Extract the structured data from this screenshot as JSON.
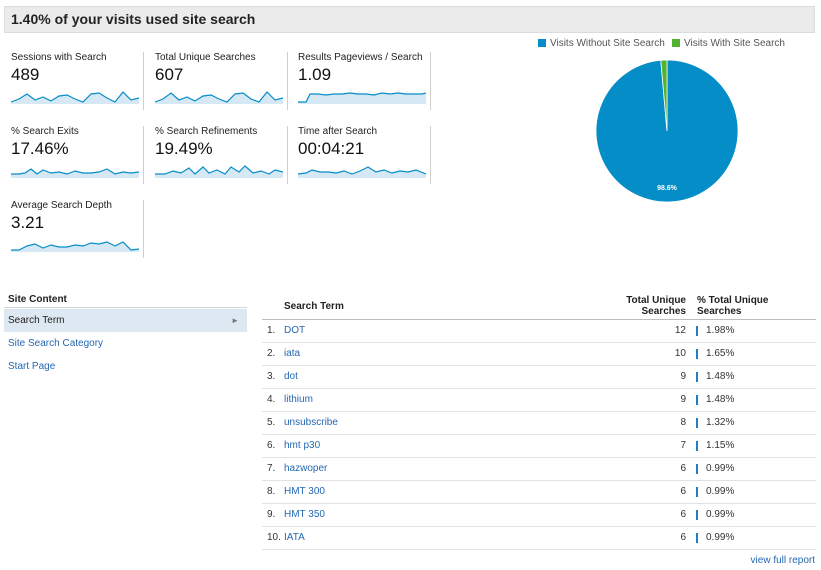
{
  "title": "1.40% of your visits used site search",
  "metrics": [
    {
      "label": "Sessions with Search",
      "value": "489"
    },
    {
      "label": "Total Unique Searches",
      "value": "607"
    },
    {
      "label": "Results Pageviews / Search",
      "value": "1.09"
    },
    {
      "label": "% Search Exits",
      "value": "17.46%"
    },
    {
      "label": "% Search Refinements",
      "value": "19.49%"
    },
    {
      "label": "Time after Search",
      "value": "00:04:21"
    },
    {
      "label": "Average Search Depth",
      "value": "3.21"
    }
  ],
  "legend": [
    {
      "label": "Visits Without Site Search",
      "color": "#058dc7"
    },
    {
      "label": "Visits With Site Search",
      "color": "#50b432"
    }
  ],
  "chart_data": {
    "type": "pie",
    "slices": [
      {
        "label": "Visits Without Site Search",
        "value": 98.6,
        "color": "#058dc7"
      },
      {
        "label": "Visits With Site Search",
        "value": 1.4,
        "color": "#50b432"
      }
    ],
    "slice_label": "98.6%"
  },
  "sidebar": {
    "header": "Site Content",
    "items": [
      {
        "label": "Search Term",
        "active": true
      },
      {
        "label": "Site Search Category",
        "active": false
      },
      {
        "label": "Start Page",
        "active": false
      }
    ]
  },
  "table": {
    "columns": [
      "Search Term",
      "Total Unique Searches",
      "% Total Unique Searches"
    ],
    "rows": [
      {
        "index": "1.",
        "term": "DOT",
        "count": "12",
        "pct": "1.98%",
        "share": 1.98
      },
      {
        "index": "2.",
        "term": "iata",
        "count": "10",
        "pct": "1.65%",
        "share": 1.65
      },
      {
        "index": "3.",
        "term": "dot",
        "count": "9",
        "pct": "1.48%",
        "share": 1.48
      },
      {
        "index": "4.",
        "term": "lithium",
        "count": "9",
        "pct": "1.48%",
        "share": 1.48
      },
      {
        "index": "5.",
        "term": "unsubscribe",
        "count": "8",
        "pct": "1.32%",
        "share": 1.32
      },
      {
        "index": "6.",
        "term": "hmt p30",
        "count": "7",
        "pct": "1.15%",
        "share": 1.15
      },
      {
        "index": "7.",
        "term": "hazwoper",
        "count": "6",
        "pct": "0.99%",
        "share": 0.99
      },
      {
        "index": "8.",
        "term": "HMT 300",
        "count": "6",
        "pct": "0.99%",
        "share": 0.99
      },
      {
        "index": "9.",
        "term": "HMT 350",
        "count": "6",
        "pct": "0.99%",
        "share": 0.99
      },
      {
        "index": "10.",
        "term": "IATA",
        "count": "6",
        "pct": "0.99%",
        "share": 0.99
      }
    ]
  },
  "full_report": "view full report"
}
